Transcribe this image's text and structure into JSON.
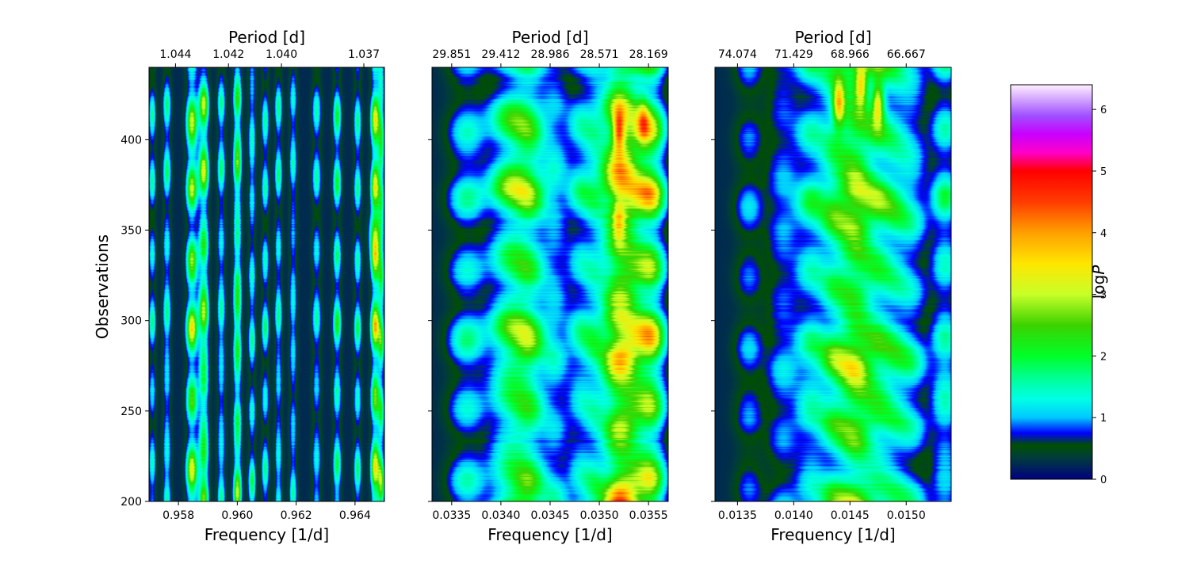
{
  "chart_data": {
    "type": "heatmap",
    "shared_ylabel": "Observations",
    "panels": [
      {
        "name": "panel-1",
        "xlabel": "Frequency [1/d]",
        "top_xlabel": "Period [d]",
        "xlim": [
          0.957,
          0.965
        ],
        "ylim": [
          200,
          440
        ],
        "xticks": [
          0.958,
          0.96,
          0.962,
          0.964
        ],
        "xtick_labels": [
          "0.958",
          "0.960",
          "0.962",
          "0.964"
        ],
        "top_ticks": [
          0.9579,
          0.9597,
          0.9615,
          0.9643
        ],
        "top_tick_labels": [
          "1.044",
          "1.042",
          "1.040",
          "1.037"
        ],
        "yticks": [
          200,
          250,
          300,
          350,
          400
        ],
        "ytick_labels": [
          "200",
          "250",
          "300",
          "350",
          "400"
        ],
        "ridges": [
          {
            "x": 0.9571,
            "w": 0.00012,
            "a": 1.3
          },
          {
            "x": 0.9576,
            "w": 0.00013,
            "a": 1.6
          },
          {
            "x": 0.95845,
            "w": 0.00018,
            "a": 2.9
          },
          {
            "x": 0.95885,
            "w": 0.00016,
            "a": 3.0
          },
          {
            "x": 0.95945,
            "w": 0.00013,
            "a": 1.6
          },
          {
            "x": 0.96,
            "w": 0.00013,
            "a": 2.8
          },
          {
            "x": 0.9605,
            "w": 0.00012,
            "a": 1.5
          },
          {
            "x": 0.96095,
            "w": 0.00012,
            "a": 1.4
          },
          {
            "x": 0.9614,
            "w": 0.00012,
            "a": 1.5
          },
          {
            "x": 0.9619,
            "w": 0.00012,
            "a": 1.4
          },
          {
            "x": 0.9627,
            "w": 0.00014,
            "a": 1.3
          },
          {
            "x": 0.9634,
            "w": 0.00013,
            "a": 1.8
          },
          {
            "x": 0.9641,
            "w": 0.00012,
            "a": 1.5
          },
          {
            "x": 0.9647,
            "w": 0.00014,
            "a": 3.2
          },
          {
            "x": 0.9649,
            "w": 0.0001,
            "a": 2.2
          }
        ],
        "hotspots": [
          {
            "x": 0.9647,
            "y": 348,
            "amp": 1.8
          }
        ]
      },
      {
        "name": "panel-2",
        "xlabel": "Frequency [1/d]",
        "top_xlabel": "Period [d]",
        "xlim": [
          0.0333,
          0.0357
        ],
        "ylim": [
          200,
          440
        ],
        "xticks": [
          0.0335,
          0.034,
          0.0345,
          0.035,
          0.0355
        ],
        "xtick_labels": [
          "0.0335",
          "0.0340",
          "0.0345",
          "0.0350",
          "0.0355"
        ],
        "top_ticks": [
          0.0335,
          0.034,
          0.0345,
          0.035,
          0.0355
        ],
        "top_tick_labels": [
          "29.851",
          "29.412",
          "28.986",
          "28.571",
          "28.169"
        ],
        "yticks": [
          200,
          250,
          300,
          350,
          400
        ],
        "ytick_labels": [
          "200",
          "250",
          "300",
          "350",
          "400"
        ],
        "ridges": [
          {
            "x": 0.03365,
            "w": 0.00018,
            "a": 1.3
          },
          {
            "x": 0.0341,
            "w": 0.00022,
            "a": 2.4
          },
          {
            "x": 0.0343,
            "w": 0.00016,
            "a": 1.8
          },
          {
            "x": 0.03455,
            "w": 0.00014,
            "a": 1.2
          },
          {
            "x": 0.0348,
            "w": 0.00013,
            "a": 1.2
          },
          {
            "x": 0.03495,
            "w": 0.00012,
            "a": 1.1
          },
          {
            "x": 0.0352,
            "w": 0.00018,
            "a": 4.0
          },
          {
            "x": 0.03545,
            "w": 0.0002,
            "a": 2.6
          },
          {
            "x": 0.03555,
            "w": 0.00012,
            "a": 1.3
          }
        ],
        "hotspots": [
          {
            "x": 0.0352,
            "y": 405,
            "amp": 2.3
          },
          {
            "x": 0.0352,
            "y": 355,
            "amp": 1.2
          },
          {
            "x": 0.03545,
            "y": 410,
            "amp": 1.4
          }
        ]
      },
      {
        "name": "panel-3",
        "xlabel": "Frequency [1/d]",
        "top_xlabel": "Period [d]",
        "xlim": [
          0.0133,
          0.0154
        ],
        "ylim": [
          200,
          440
        ],
        "xticks": [
          0.0135,
          0.014,
          0.0145,
          0.015
        ],
        "xtick_labels": [
          "0.0135",
          "0.0140",
          "0.0145",
          "0.0150"
        ],
        "top_ticks": [
          0.0135,
          0.014,
          0.0145,
          0.015
        ],
        "top_tick_labels": [
          "74.074",
          "71.429",
          "68.966",
          "66.667"
        ],
        "yticks": [
          200,
          250,
          300,
          350,
          400
        ],
        "ytick_labels": [
          "200",
          "250",
          "300",
          "350",
          "400"
        ],
        "ridges": [
          {
            "x": 0.0136,
            "w": 0.00012,
            "a": 0.8
          },
          {
            "x": 0.0139,
            "w": 0.00014,
            "a": 1.0
          },
          {
            "x": 0.01415,
            "w": 0.00014,
            "a": 1.5
          },
          {
            "x": 0.01435,
            "w": 0.00013,
            "a": 1.8
          },
          {
            "x": 0.0145,
            "w": 0.00013,
            "a": 2.2
          },
          {
            "x": 0.0146,
            "w": 0.00012,
            "a": 1.8
          },
          {
            "x": 0.01475,
            "w": 0.00013,
            "a": 2.0
          },
          {
            "x": 0.0149,
            "w": 0.00012,
            "a": 1.2
          },
          {
            "x": 0.01505,
            "w": 0.00014,
            "a": 1.3
          },
          {
            "x": 0.01535,
            "w": 0.00012,
            "a": 1.6
          }
        ],
        "hotspots": [
          {
            "x": 0.0144,
            "y": 420,
            "amp": 2.4
          },
          {
            "x": 0.01475,
            "y": 420,
            "amp": 2.3
          },
          {
            "x": 0.0146,
            "y": 430,
            "amp": 2.0
          }
        ]
      }
    ],
    "colorbar": {
      "label": "logP",
      "label_main": "log",
      "label_italic": "P",
      "range": [
        0,
        6.4
      ],
      "ticks": [
        0,
        1,
        2,
        3,
        4,
        5,
        6
      ],
      "tick_labels": [
        "0",
        "1",
        "2",
        "3",
        "4",
        "5",
        "6"
      ],
      "colormap": "gist_ncar"
    }
  }
}
